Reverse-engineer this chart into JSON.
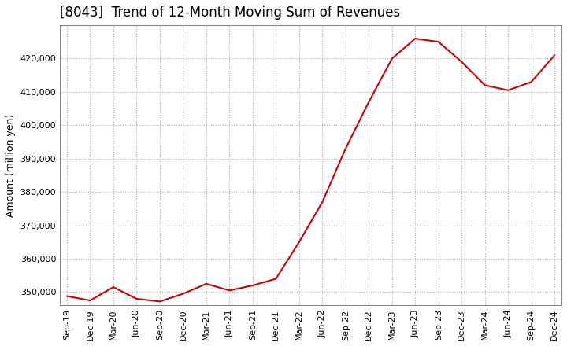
{
  "title": "[8043]  Trend of 12-Month Moving Sum of Revenues",
  "ylabel": "Amount (million yen)",
  "line_color": "#cc0000",
  "background_color": "#ffffff",
  "grid_color": "#aaaaaa",
  "ylim": [
    346000,
    430000
  ],
  "yticks": [
    350000,
    360000,
    370000,
    380000,
    390000,
    400000,
    410000,
    420000
  ],
  "x_labels": [
    "Sep-19",
    "Dec-19",
    "Mar-20",
    "Jun-20",
    "Sep-20",
    "Dec-20",
    "Mar-21",
    "Jun-21",
    "Sep-21",
    "Dec-21",
    "Mar-22",
    "Jun-22",
    "Sep-22",
    "Dec-22",
    "Mar-23",
    "Jun-23",
    "Sep-23",
    "Dec-23",
    "Mar-24",
    "Jun-24",
    "Sep-24",
    "Dec-24"
  ],
  "values": [
    348800,
    347500,
    351500,
    348000,
    347200,
    349500,
    352500,
    350500,
    352000,
    354000,
    365000,
    377000,
    393000,
    407000,
    420000,
    426000,
    425000,
    419000,
    412000,
    410500,
    413000,
    421000
  ],
  "title_fontsize": 12,
  "tick_fontsize": 8,
  "ylabel_fontsize": 9
}
